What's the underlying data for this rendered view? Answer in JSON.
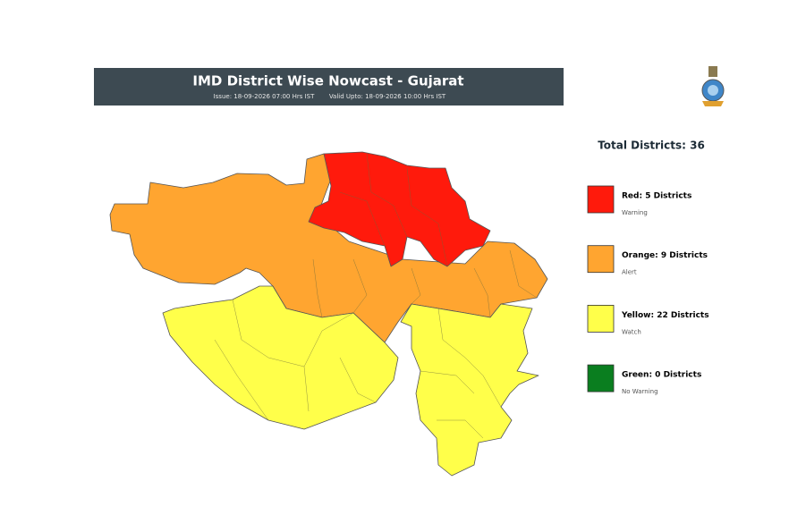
{
  "header": {
    "title": "IMD District Wise Nowcast - Gujarat",
    "issue": "Issue: 18-09-2026 07:00 Hrs IST",
    "valid": "Valid Upto: 18-09-2026 10:00 Hrs IST"
  },
  "total": "Total Districts: 36",
  "legend": [
    {
      "label": "Red: 5 Districts",
      "note": "Warning",
      "color": "#ff1a0c"
    },
    {
      "label": "Orange: 9 Districts",
      "note": "Alert",
      "color": "#ffa530"
    },
    {
      "label": "Yellow: 22 Districts",
      "note": "Watch",
      "color": "#ffff4a"
    },
    {
      "label": "Green: 0 Districts",
      "note": "No Warning",
      "color": "#0a7e1f"
    }
  ]
}
